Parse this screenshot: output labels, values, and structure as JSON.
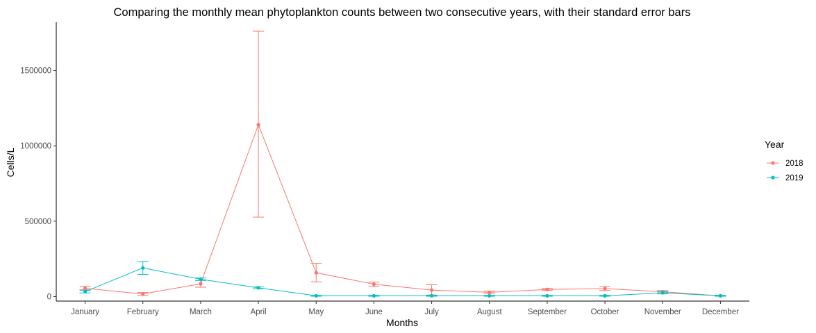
{
  "chart_data": {
    "type": "line",
    "title": "Comparing the monthly mean phytoplankton counts between two consecutive years, with their standard error bars",
    "xlabel": "Months",
    "ylabel": "Cells/L",
    "categories": [
      "January",
      "February",
      "March",
      "April",
      "May",
      "June",
      "July",
      "August",
      "September",
      "October",
      "November",
      "December"
    ],
    "ylim": [
      -30000,
      1820000
    ],
    "yticks": [
      0,
      500000,
      1000000,
      1500000
    ],
    "ytick_labels": [
      "0",
      "500000",
      "1000000",
      "1500000"
    ],
    "grid": false,
    "legend": {
      "title": "Year",
      "position": "right"
    },
    "series": [
      {
        "name": "2018",
        "color": "#F8766D",
        "values": [
          55000,
          17000,
          85000,
          1140000,
          158000,
          82000,
          43000,
          28000,
          47000,
          53000,
          32000,
          5000
        ],
        "err_low": [
          45000,
          7000,
          62000,
          527000,
          97000,
          68000,
          10000,
          20000,
          40000,
          40000,
          25000,
          2000
        ],
        "err_high": [
          67000,
          27000,
          108000,
          1760000,
          220000,
          96000,
          78000,
          36000,
          54000,
          66000,
          40000,
          8000
        ]
      },
      {
        "name": "2019",
        "color": "#00BFC4",
        "values": [
          33000,
          190000,
          115000,
          58000,
          5000,
          5000,
          5000,
          5000,
          5000,
          5000,
          25000,
          5000
        ],
        "err_low": [
          24000,
          147000,
          107000,
          52000,
          2000,
          2000,
          2000,
          2000,
          2000,
          2000,
          18000,
          2000
        ],
        "err_high": [
          42000,
          233000,
          123000,
          64000,
          8000,
          8000,
          8000,
          8000,
          8000,
          8000,
          32000,
          8000
        ]
      }
    ]
  }
}
